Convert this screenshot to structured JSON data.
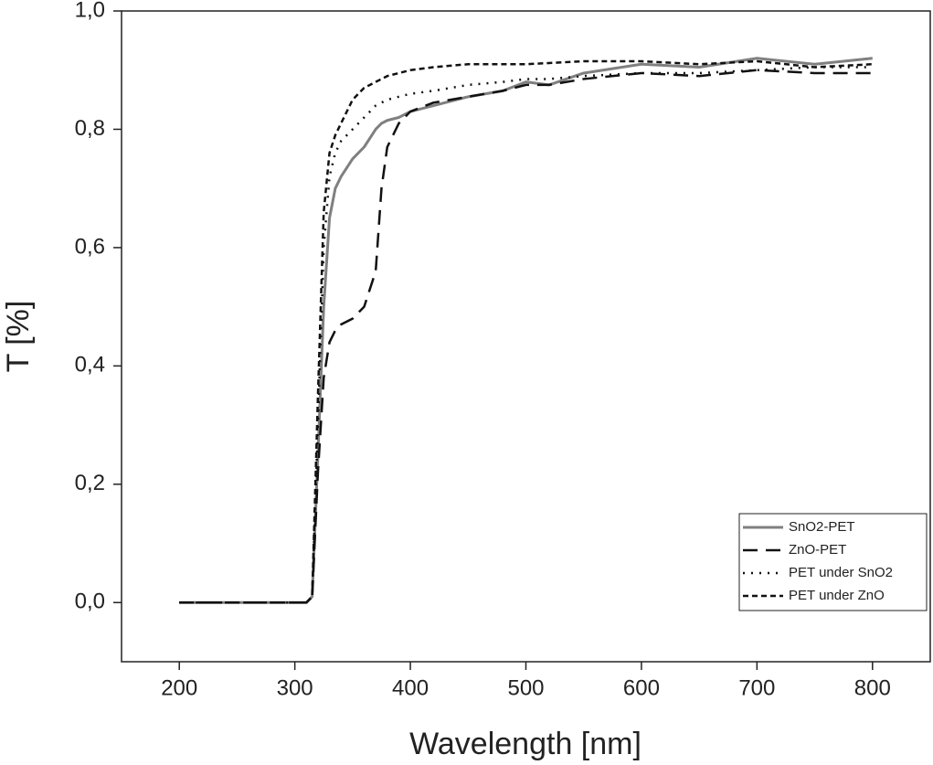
{
  "chart_data": {
    "type": "line",
    "x_label": "Wavelength [nm]",
    "y_label": "T [%]",
    "x": [
      200,
      250,
      300,
      310,
      315,
      320,
      325,
      330,
      335,
      340,
      350,
      360,
      370,
      375,
      380,
      390,
      400,
      420,
      450,
      480,
      500,
      520,
      550,
      600,
      650,
      700,
      750,
      800
    ],
    "series": [
      {
        "name": "SnO2-PET",
        "color": "#808080",
        "line_style": "solid",
        "values": [
          0,
          0,
          0,
          0,
          0.01,
          0.25,
          0.5,
          0.65,
          0.7,
          0.72,
          0.75,
          0.77,
          0.8,
          0.81,
          0.815,
          0.82,
          0.83,
          0.84,
          0.855,
          0.865,
          0.88,
          0.875,
          0.895,
          0.91,
          0.905,
          0.92,
          0.91,
          0.92
        ]
      },
      {
        "name": "ZnO-PET",
        "color": "#111111",
        "line_style": "dashed",
        "values": [
          0,
          0,
          0,
          0,
          0.01,
          0.22,
          0.38,
          0.44,
          0.46,
          0.47,
          0.48,
          0.5,
          0.56,
          0.7,
          0.77,
          0.81,
          0.83,
          0.845,
          0.855,
          0.865,
          0.875,
          0.875,
          0.885,
          0.895,
          0.89,
          0.9,
          0.895,
          0.895
        ]
      },
      {
        "name": "PET under SnO2",
        "color": "#111111",
        "line_style": "dotted",
        "values": [
          0,
          0,
          0,
          0,
          0.01,
          0.3,
          0.6,
          0.72,
          0.76,
          0.78,
          0.8,
          0.82,
          0.84,
          0.845,
          0.85,
          0.855,
          0.86,
          0.865,
          0.875,
          0.88,
          0.885,
          0.885,
          0.89,
          0.895,
          0.895,
          0.9,
          0.905,
          0.905
        ]
      },
      {
        "name": "PET under ZnO",
        "color": "#111111",
        "line_style": "short-dashed",
        "values": [
          0,
          0,
          0,
          0,
          0.01,
          0.35,
          0.66,
          0.76,
          0.79,
          0.81,
          0.85,
          0.87,
          0.88,
          0.885,
          0.89,
          0.895,
          0.9,
          0.905,
          0.91,
          0.91,
          0.91,
          0.912,
          0.915,
          0.915,
          0.91,
          0.915,
          0.905,
          0.91
        ]
      }
    ],
    "xlim": [
      150,
      850
    ],
    "ylim": [
      -0.1,
      1.0
    ],
    "xticks": [
      200,
      300,
      400,
      500,
      600,
      700,
      800
    ],
    "yticks": [
      {
        "value": 0,
        "label": "0,0"
      },
      {
        "value": 0.2,
        "label": "0,2"
      },
      {
        "value": 0.4,
        "label": "0,4"
      },
      {
        "value": 0.6,
        "label": "0,6"
      },
      {
        "value": 0.8,
        "label": "0,8"
      },
      {
        "value": 1.0,
        "label": "1,0"
      }
    ],
    "legend": "lower right"
  }
}
